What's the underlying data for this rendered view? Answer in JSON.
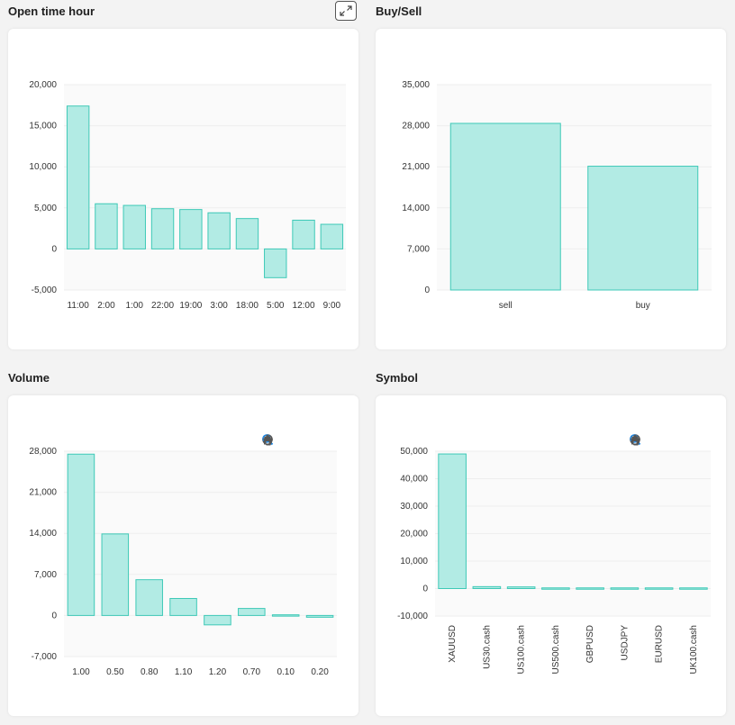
{
  "sections": {
    "open_time_hour": "Open time hour",
    "buy_sell": "Buy/Sell",
    "volume": "Volume",
    "symbol": "Symbol"
  },
  "icons": {
    "expand": "expand-icon",
    "toolbar": [
      "zoom-in-icon",
      "zoom-out-icon",
      "zoom-selection-icon",
      "pan-hand-icon",
      "home-icon"
    ]
  },
  "colors": {
    "bar_fill": "#b2ebe4",
    "bar_stroke": "#3ec9b7",
    "grid": "#eeeeee",
    "plot_bg": "#fafafa"
  },
  "chart_data": [
    {
      "id": "open_time_hour",
      "type": "bar",
      "categories": [
        "11:00",
        "2:00",
        "1:00",
        "22:00",
        "19:00",
        "3:00",
        "18:00",
        "5:00",
        "12:00",
        "9:00"
      ],
      "values": [
        17400,
        5500,
        5300,
        4900,
        4800,
        4400,
        3700,
        -3500,
        3500,
        3000
      ],
      "ylim": [
        -5000,
        20000
      ],
      "yticks": [
        -5000,
        0,
        5000,
        10000,
        15000,
        20000
      ],
      "ytick_labels": [
        "-5,000",
        "0",
        "5,000",
        "10,000",
        "15,000",
        "20,000"
      ],
      "grid": true
    },
    {
      "id": "buy_sell",
      "type": "bar",
      "categories": [
        "sell",
        "buy"
      ],
      "values": [
        28400,
        21100
      ],
      "ylim": [
        0,
        35000
      ],
      "yticks": [
        0,
        7000,
        14000,
        21000,
        28000,
        35000
      ],
      "ytick_labels": [
        "0",
        "7,000",
        "14,000",
        "21,000",
        "28,000",
        "35,000"
      ],
      "grid": true
    },
    {
      "id": "volume",
      "type": "bar",
      "categories": [
        "1.00",
        "0.50",
        "0.80",
        "1.10",
        "1.20",
        "0.70",
        "0.10",
        "0.20"
      ],
      "values": [
        27500,
        13900,
        6100,
        2900,
        -1600,
        1200,
        200,
        -300
      ],
      "ylim": [
        -7000,
        28000
      ],
      "yticks": [
        -7000,
        0,
        7000,
        14000,
        21000,
        28000
      ],
      "ytick_labels": [
        "-7,000",
        "0",
        "7,000",
        "14,000",
        "21,000",
        "28,000"
      ],
      "grid": true
    },
    {
      "id": "symbol",
      "type": "bar",
      "categories": [
        "XAUUSD",
        "US30.cash",
        "US100.cash",
        "US500.cash",
        "GBPUSD",
        "USDJPY",
        "EURUSD",
        "UK100.cash"
      ],
      "values": [
        49000,
        700,
        600,
        200,
        150,
        120,
        100,
        80
      ],
      "ylim": [
        -10000,
        50000
      ],
      "yticks": [
        -10000,
        0,
        10000,
        20000,
        30000,
        40000,
        50000
      ],
      "ytick_labels": [
        "-10,000",
        "0",
        "10,000",
        "20,000",
        "30,000",
        "40,000",
        "50,000"
      ],
      "grid": true,
      "rotated_xlabels": true
    }
  ]
}
